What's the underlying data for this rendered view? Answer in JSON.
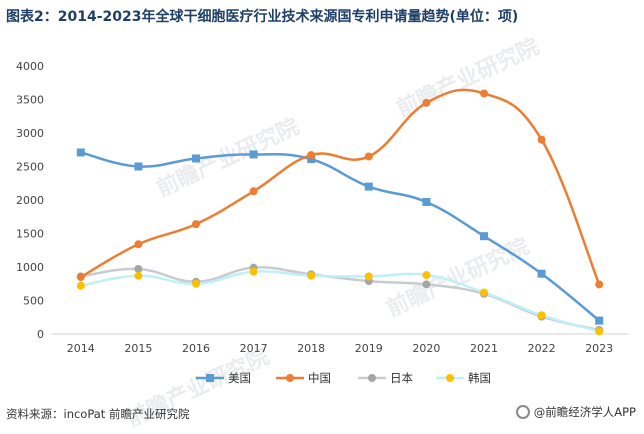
{
  "title": "图表2：2014-2023年全球干细胞医疗行业技术来源国专利申请量趋势(单位：项)",
  "source": "资料来源：incoPat 前瞻产业研究院",
  "brand": "@前瞻经济学人APP",
  "watermark": "前瞻产业研究院",
  "chart_data": {
    "type": "line",
    "categories": [
      "2014",
      "2015",
      "2016",
      "2017",
      "2018",
      "2019",
      "2020",
      "2021",
      "2022",
      "2023"
    ],
    "ylim": [
      0,
      4000
    ],
    "yticks": [
      0,
      500,
      1000,
      1500,
      2000,
      2500,
      3000,
      3500,
      4000
    ],
    "grid": false,
    "legend_position": "bottom",
    "series": [
      {
        "name": "美国",
        "color": "#5b9bd5",
        "marker": "square",
        "values": [
          2710,
          2500,
          2620,
          2680,
          2610,
          2200,
          1970,
          1460,
          900,
          200
        ]
      },
      {
        "name": "中国",
        "color": "#ed7d31",
        "marker": "circle",
        "values": [
          850,
          1340,
          1640,
          2130,
          2670,
          2650,
          3450,
          3590,
          2900,
          740
        ]
      },
      {
        "name": "日本",
        "color": "#a5a5a5",
        "marker": "circle",
        "values": [
          860,
          970,
          780,
          990,
          890,
          790,
          740,
          600,
          260,
          60
        ]
      },
      {
        "name": "韩国",
        "color": "#ffc000",
        "marker": "circle",
        "values": [
          720,
          870,
          750,
          930,
          870,
          860,
          880,
          620,
          280,
          40
        ]
      }
    ]
  }
}
